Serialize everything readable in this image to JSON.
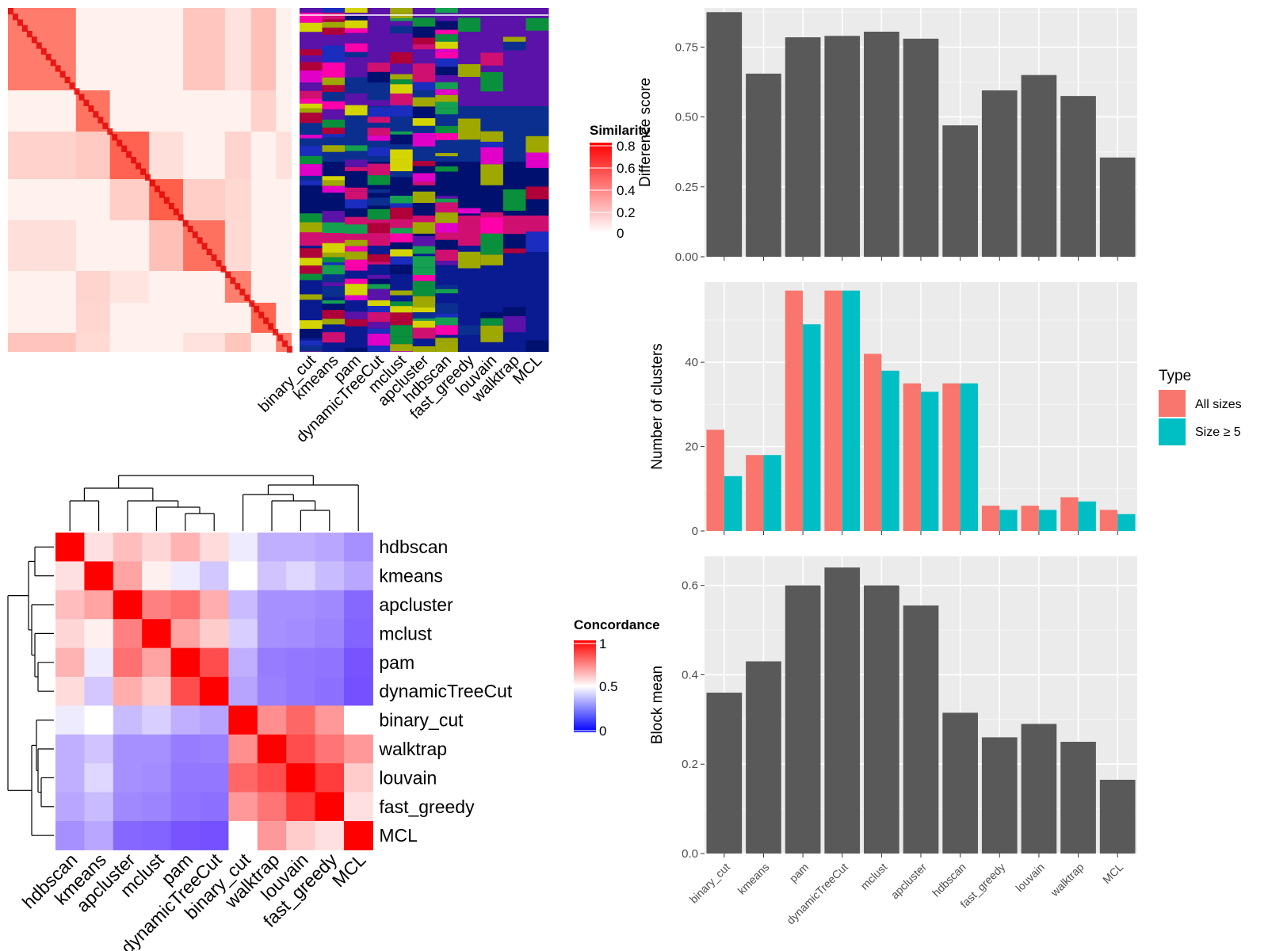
{
  "methods_cols": [
    "binary_cut",
    "kmeans",
    "pam",
    "dynamicTreeCut",
    "mclust",
    "apcluster",
    "hdbscan",
    "fast_greedy",
    "louvain",
    "walktrap",
    "MCL"
  ],
  "similarity_legend": {
    "title": "Similarity",
    "ticks": [
      "0.8",
      "0.6",
      "0.4",
      "0.2",
      "0"
    ],
    "colors": [
      "#ff0000",
      "#ffffff"
    ]
  },
  "concordance_legend": {
    "title": "Concordance",
    "ticks": [
      "1",
      "0.5",
      "0"
    ],
    "colors": [
      "#ff0000",
      "#ffffff",
      "#0000ff"
    ]
  },
  "chart_data": [
    {
      "type": "heatmap",
      "title": "",
      "rows": [
        "hdbscan",
        "kmeans",
        "apcluster",
        "mclust",
        "pam",
        "dynamicTreeCut",
        "binary_cut",
        "walktrap",
        "louvain",
        "fast_greedy",
        "MCL"
      ],
      "cols": [
        "hdbscan",
        "kmeans",
        "apcluster",
        "mclust",
        "pam",
        "dynamicTreeCut",
        "binary_cut",
        "walktrap",
        "louvain",
        "fast_greedy",
        "MCL"
      ],
      "values": [
        [
          1.0,
          0.56,
          0.63,
          0.58,
          0.65,
          0.57,
          0.45,
          0.3,
          0.3,
          0.28,
          0.22
        ],
        [
          0.56,
          1.0,
          0.68,
          0.53,
          0.45,
          0.36,
          0.5,
          0.35,
          0.4,
          0.33,
          0.28
        ],
        [
          0.63,
          0.68,
          1.0,
          0.75,
          0.78,
          0.66,
          0.33,
          0.22,
          0.22,
          0.2,
          0.12
        ],
        [
          0.58,
          0.53,
          0.75,
          1.0,
          0.68,
          0.6,
          0.38,
          0.22,
          0.21,
          0.19,
          0.11
        ],
        [
          0.65,
          0.45,
          0.78,
          0.68,
          1.0,
          0.85,
          0.3,
          0.17,
          0.16,
          0.15,
          0.07
        ],
        [
          0.57,
          0.36,
          0.66,
          0.6,
          0.85,
          1.0,
          0.27,
          0.18,
          0.16,
          0.14,
          0.06
        ],
        [
          0.45,
          0.5,
          0.33,
          0.38,
          0.3,
          0.27,
          1.0,
          0.72,
          0.8,
          0.7,
          0.5
        ],
        [
          0.3,
          0.35,
          0.22,
          0.22,
          0.17,
          0.18,
          0.72,
          1.0,
          0.85,
          0.77,
          0.7
        ],
        [
          0.3,
          0.4,
          0.22,
          0.21,
          0.16,
          0.16,
          0.8,
          0.85,
          1.0,
          0.88,
          0.6
        ],
        [
          0.28,
          0.33,
          0.2,
          0.19,
          0.15,
          0.14,
          0.7,
          0.77,
          0.88,
          1.0,
          0.56
        ],
        [
          0.22,
          0.28,
          0.12,
          0.11,
          0.07,
          0.06,
          0.5,
          0.7,
          0.6,
          0.56,
          1.0
        ]
      ],
      "legend": "Concordance",
      "range": [
        0,
        1
      ]
    },
    {
      "type": "bar",
      "categories": [
        "binary_cut",
        "kmeans",
        "pam",
        "dynamicTreeCut",
        "mclust",
        "apcluster",
        "hdbscan",
        "fast_greedy",
        "louvain",
        "walktrap",
        "MCL"
      ],
      "values": [
        0.875,
        0.655,
        0.785,
        0.79,
        0.805,
        0.78,
        0.47,
        0.595,
        0.65,
        0.575,
        0.355
      ],
      "title": "",
      "xlabel": "",
      "ylabel": "Difference score",
      "ylim": [
        0,
        0.89
      ],
      "yticks": [
        "0.00",
        "0.25",
        "0.50",
        "0.75"
      ],
      "grid": true
    },
    {
      "type": "bar",
      "categories": [
        "binary_cut",
        "kmeans",
        "pam",
        "dynamicTreeCut",
        "mclust",
        "apcluster",
        "hdbscan",
        "fast_greedy",
        "louvain",
        "walktrap",
        "MCL"
      ],
      "series": [
        {
          "name": "All sizes",
          "color": "#f8766d",
          "values": [
            24,
            18,
            57,
            57,
            42,
            35,
            35,
            6,
            6,
            8,
            5
          ]
        },
        {
          "name": "Size ≥ 5",
          "color": "#00bfc4",
          "values": [
            13,
            18,
            49,
            57,
            38,
            33,
            35,
            5,
            5,
            7,
            4
          ]
        }
      ],
      "title": "",
      "xlabel": "",
      "ylabel": "Number of clusters",
      "ylim": [
        0,
        59
      ],
      "yticks": [
        "0",
        "20",
        "40"
      ],
      "legend_title": "Type",
      "legend_position": "right",
      "grid": true
    },
    {
      "type": "bar",
      "categories": [
        "binary_cut",
        "kmeans",
        "pam",
        "dynamicTreeCut",
        "mclust",
        "apcluster",
        "hdbscan",
        "fast_greedy",
        "louvain",
        "walktrap",
        "MCL"
      ],
      "values": [
        0.36,
        0.43,
        0.6,
        0.64,
        0.6,
        0.555,
        0.315,
        0.26,
        0.29,
        0.25,
        0.165
      ],
      "title": "",
      "xlabel": "",
      "ylabel": "Block mean",
      "ylim": [
        0,
        0.665
      ],
      "yticks": [
        "0.0",
        "0.2",
        "0.4",
        "0.6"
      ],
      "grid": true
    }
  ]
}
